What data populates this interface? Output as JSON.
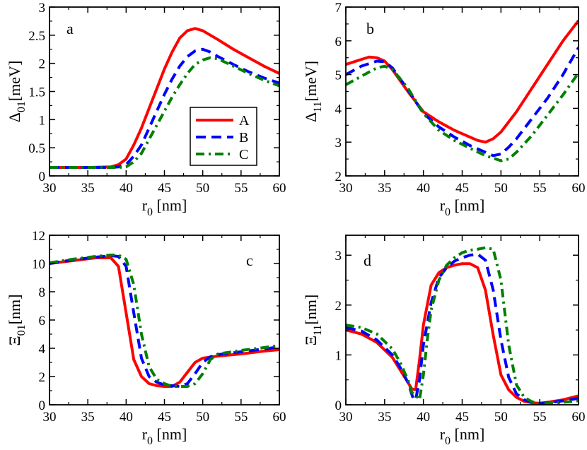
{
  "figure": {
    "series_styles": [
      {
        "name": "A",
        "color": "#ff0000",
        "dash": ""
      },
      {
        "name": "B",
        "color": "#0000ff",
        "dash": "14 8"
      },
      {
        "name": "C",
        "color": "#008000",
        "dash": "12 6 3 6"
      }
    ],
    "legend": {
      "panel": "a",
      "placement": "center",
      "entries": [
        "A",
        "B",
        "C"
      ]
    }
  },
  "chart_data": [
    {
      "id": "a",
      "type": "line",
      "panel_label": "a",
      "xlabel_main": "r",
      "xlabel_sub": "0",
      "xlabel_unit": " [nm]",
      "ylabel_main": "Δ",
      "ylabel_sub": "01",
      "ylabel_unit": "[meV]",
      "xlim": [
        30,
        60
      ],
      "ylim": [
        0,
        3
      ],
      "xticks": [
        30,
        35,
        40,
        45,
        50,
        55,
        60
      ],
      "yticks": [
        0,
        0.5,
        1,
        1.5,
        2,
        2.5,
        3
      ],
      "series": [
        {
          "name": "A",
          "x": [
            30,
            35,
            38,
            39,
            40,
            41,
            42,
            43,
            44,
            45,
            46,
            47,
            48,
            49,
            50,
            51,
            52,
            54,
            56,
            58,
            60
          ],
          "y": [
            0.15,
            0.15,
            0.16,
            0.2,
            0.3,
            0.55,
            0.85,
            1.2,
            1.55,
            1.9,
            2.2,
            2.45,
            2.58,
            2.62,
            2.58,
            2.5,
            2.42,
            2.25,
            2.1,
            1.95,
            1.82
          ]
        },
        {
          "name": "B",
          "x": [
            30,
            35,
            38,
            39,
            40,
            41,
            42,
            43,
            44,
            45,
            46,
            47,
            48,
            49,
            50,
            51,
            52,
            54,
            56,
            58,
            60
          ],
          "y": [
            0.15,
            0.15,
            0.15,
            0.16,
            0.2,
            0.35,
            0.55,
            0.85,
            1.15,
            1.45,
            1.72,
            1.95,
            2.12,
            2.22,
            2.25,
            2.2,
            2.12,
            1.98,
            1.85,
            1.74,
            1.65
          ]
        },
        {
          "name": "C",
          "x": [
            30,
            35,
            38,
            39,
            40,
            41,
            42,
            43,
            44,
            45,
            46,
            47,
            48,
            49,
            50,
            51,
            52,
            54,
            56,
            58,
            60
          ],
          "y": [
            0.15,
            0.15,
            0.15,
            0.15,
            0.16,
            0.25,
            0.4,
            0.65,
            0.9,
            1.15,
            1.4,
            1.62,
            1.82,
            1.98,
            2.06,
            2.1,
            2.08,
            1.95,
            1.82,
            1.7,
            1.6
          ]
        }
      ]
    },
    {
      "id": "b",
      "type": "line",
      "panel_label": "b",
      "xlabel_main": "r",
      "xlabel_sub": "0",
      "xlabel_unit": " [nm]",
      "ylabel_main": "Δ",
      "ylabel_sub": "11",
      "ylabel_unit": "[meV]",
      "xlim": [
        30,
        60
      ],
      "ylim": [
        2,
        7
      ],
      "xticks": [
        30,
        35,
        40,
        45,
        50,
        55,
        60
      ],
      "yticks": [
        2,
        3,
        4,
        5,
        6,
        7
      ],
      "series": [
        {
          "name": "A",
          "x": [
            30,
            32,
            33,
            34,
            35,
            36,
            38,
            40,
            42,
            44,
            46,
            47,
            48,
            49,
            50,
            52,
            54,
            56,
            58,
            60
          ],
          "y": [
            5.3,
            5.45,
            5.52,
            5.5,
            5.4,
            5.15,
            4.5,
            3.9,
            3.6,
            3.35,
            3.15,
            3.05,
            3.0,
            3.1,
            3.3,
            3.9,
            4.6,
            5.3,
            6.0,
            6.6
          ]
        },
        {
          "name": "B",
          "x": [
            30,
            32,
            34,
            35,
            36,
            38,
            40,
            42,
            44,
            46,
            48,
            49,
            50,
            51,
            52,
            54,
            56,
            58,
            60
          ],
          "y": [
            5.0,
            5.25,
            5.4,
            5.38,
            5.2,
            4.55,
            3.85,
            3.45,
            3.15,
            2.9,
            2.7,
            2.6,
            2.65,
            2.85,
            3.1,
            3.7,
            4.3,
            5.0,
            5.8
          ]
        },
        {
          "name": "C",
          "x": [
            30,
            32,
            34,
            35,
            36,
            38,
            40,
            42,
            44,
            46,
            48,
            50,
            51,
            52,
            54,
            56,
            58,
            60
          ],
          "y": [
            4.7,
            4.95,
            5.2,
            5.25,
            5.15,
            4.6,
            3.85,
            3.35,
            3.05,
            2.82,
            2.6,
            2.45,
            2.5,
            2.7,
            3.2,
            3.8,
            4.4,
            5.05
          ]
        }
      ]
    },
    {
      "id": "c",
      "type": "line",
      "panel_label": "c",
      "xlabel_main": "r",
      "xlabel_sub": "0",
      "xlabel_unit": " [nm]",
      "ylabel_main": "Ξ",
      "ylabel_sub": "01",
      "ylabel_unit": "[nm]",
      "xlim": [
        30,
        60
      ],
      "ylim": [
        0,
        12
      ],
      "xticks": [
        30,
        35,
        40,
        45,
        50,
        55,
        60
      ],
      "yticks": [
        0,
        2,
        4,
        6,
        8,
        10,
        12
      ],
      "series": [
        {
          "name": "A",
          "x": [
            30,
            33,
            36,
            38,
            39,
            40,
            41,
            42,
            43,
            44,
            45,
            46,
            47,
            48,
            49,
            50,
            52,
            55,
            58,
            60
          ],
          "y": [
            10.0,
            10.2,
            10.4,
            10.4,
            9.8,
            6.5,
            3.2,
            2.0,
            1.5,
            1.35,
            1.3,
            1.3,
            1.6,
            2.3,
            3.0,
            3.3,
            3.45,
            3.6,
            3.8,
            3.9
          ]
        },
        {
          "name": "B",
          "x": [
            30,
            33,
            36,
            38,
            39,
            40,
            41,
            42,
            43,
            44,
            45,
            46,
            47,
            48,
            49,
            50,
            51,
            52,
            55,
            58,
            60
          ],
          "y": [
            10.0,
            10.25,
            10.45,
            10.55,
            10.5,
            9.8,
            6.5,
            3.3,
            2.0,
            1.6,
            1.4,
            1.35,
            1.3,
            1.5,
            2.2,
            3.0,
            3.4,
            3.55,
            3.75,
            3.95,
            4.1
          ]
        },
        {
          "name": "C",
          "x": [
            30,
            33,
            36,
            38,
            39,
            40,
            41,
            42,
            43,
            44,
            45,
            46,
            47,
            48,
            49,
            50,
            51,
            52,
            55,
            58,
            60
          ],
          "y": [
            10.05,
            10.3,
            10.5,
            10.6,
            10.6,
            10.3,
            8.5,
            5.0,
            2.7,
            1.8,
            1.5,
            1.3,
            1.3,
            1.3,
            1.5,
            2.2,
            3.2,
            3.6,
            3.85,
            4.05,
            4.2
          ]
        }
      ]
    },
    {
      "id": "d",
      "type": "line",
      "panel_label": "d",
      "xlabel_main": "r",
      "xlabel_sub": "0",
      "xlabel_unit": " [nm]",
      "ylabel_main": "Ξ",
      "ylabel_sub": "11",
      "ylabel_unit": "[nm]",
      "xlim": [
        30,
        60
      ],
      "ylim": [
        0,
        3.4
      ],
      "xticks": [
        30,
        35,
        40,
        45,
        50,
        55,
        60
      ],
      "yticks": [
        0,
        1,
        2,
        3
      ],
      "series": [
        {
          "name": "A",
          "x": [
            30,
            32,
            34,
            36,
            37,
            38,
            38.5,
            39,
            39.5,
            40,
            41,
            42,
            43,
            44,
            45,
            46,
            47,
            48,
            49,
            50,
            51,
            52,
            53,
            54,
            55,
            56,
            58,
            60
          ],
          "y": [
            1.5,
            1.42,
            1.25,
            0.95,
            0.7,
            0.45,
            0.32,
            0.3,
            0.9,
            1.6,
            2.4,
            2.65,
            2.75,
            2.8,
            2.83,
            2.83,
            2.75,
            2.3,
            1.4,
            0.6,
            0.3,
            0.15,
            0.07,
            0.04,
            0.03,
            0.05,
            0.1,
            0.18
          ]
        },
        {
          "name": "B",
          "x": [
            30,
            32,
            34,
            36,
            37,
            38,
            38.7,
            39,
            39.5,
            40,
            41,
            42,
            43,
            44,
            45,
            46,
            47,
            48,
            49,
            50,
            51,
            52,
            53,
            54,
            55,
            56,
            58,
            60
          ],
          "y": [
            1.55,
            1.48,
            1.3,
            1.0,
            0.75,
            0.45,
            0.12,
            0.1,
            0.5,
            1.2,
            2.05,
            2.55,
            2.75,
            2.88,
            2.95,
            3.0,
            3.02,
            2.9,
            2.3,
            1.3,
            0.55,
            0.22,
            0.1,
            0.05,
            0.03,
            0.04,
            0.08,
            0.13
          ]
        },
        {
          "name": "C",
          "x": [
            30,
            32,
            34,
            36,
            37,
            38,
            38.5,
            39,
            39.5,
            40,
            40.5,
            41,
            42,
            43,
            44,
            45,
            46,
            47,
            48,
            49,
            50,
            51,
            52,
            53,
            54,
            55,
            56,
            58,
            60
          ],
          "y": [
            1.6,
            1.55,
            1.42,
            1.12,
            0.85,
            0.5,
            0.25,
            0.2,
            0.1,
            0.6,
            1.3,
            1.9,
            2.5,
            2.8,
            2.95,
            3.05,
            3.1,
            3.12,
            3.15,
            3.12,
            2.5,
            1.2,
            0.4,
            0.15,
            0.06,
            0.03,
            0.03,
            0.05,
            0.08
          ]
        }
      ]
    }
  ]
}
